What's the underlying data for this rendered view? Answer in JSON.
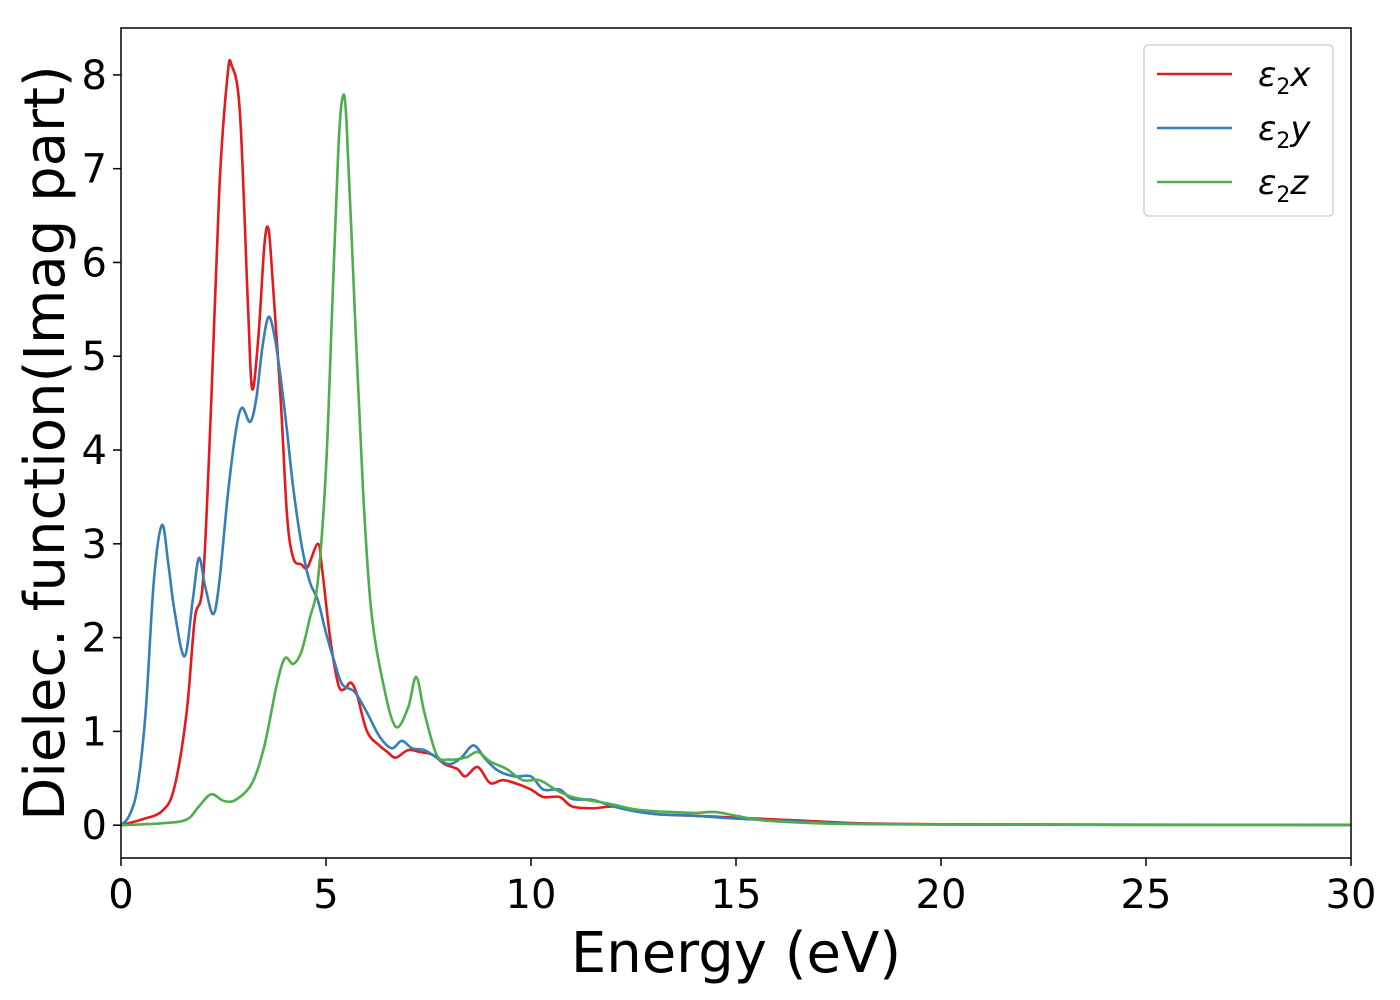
{
  "chart_data": {
    "type": "line",
    "xlabel": "Energy (eV)",
    "ylabel": "Dielec. function(Imag part)",
    "xlim": [
      0,
      30
    ],
    "ylim": [
      -0.35,
      8.5
    ],
    "xticks": [
      0,
      5,
      10,
      15,
      20,
      25,
      30
    ],
    "yticks": [
      0,
      1,
      2,
      3,
      4,
      5,
      6,
      7,
      8
    ],
    "grid": false,
    "legend_position": "top-right",
    "series": [
      {
        "name": "ε2x",
        "legend": {
          "symbol": "ε",
          "sub": "2",
          "axis": "x"
        },
        "color": "#e41a1c",
        "points": [
          [
            0,
            0
          ],
          [
            0.5,
            0.06
          ],
          [
            1.0,
            0.15
          ],
          [
            1.3,
            0.4
          ],
          [
            1.6,
            1.2
          ],
          [
            1.8,
            2.2
          ],
          [
            2.0,
            2.6
          ],
          [
            2.2,
            4.5
          ],
          [
            2.4,
            6.8
          ],
          [
            2.6,
            8.0
          ],
          [
            2.7,
            8.1
          ],
          [
            2.9,
            7.6
          ],
          [
            3.1,
            5.5
          ],
          [
            3.2,
            4.65
          ],
          [
            3.35,
            5.2
          ],
          [
            3.5,
            6.2
          ],
          [
            3.6,
            6.35
          ],
          [
            3.7,
            5.8
          ],
          [
            3.9,
            4.5
          ],
          [
            4.05,
            3.3
          ],
          [
            4.2,
            2.85
          ],
          [
            4.4,
            2.78
          ],
          [
            4.55,
            2.75
          ],
          [
            4.8,
            3.0
          ],
          [
            4.9,
            2.75
          ],
          [
            5.1,
            2.0
          ],
          [
            5.3,
            1.5
          ],
          [
            5.45,
            1.45
          ],
          [
            5.6,
            1.52
          ],
          [
            5.75,
            1.4
          ],
          [
            6.0,
            1.0
          ],
          [
            6.3,
            0.85
          ],
          [
            6.5,
            0.78
          ],
          [
            6.7,
            0.72
          ],
          [
            7.0,
            0.8
          ],
          [
            7.3,
            0.78
          ],
          [
            7.6,
            0.75
          ],
          [
            7.9,
            0.65
          ],
          [
            8.2,
            0.6
          ],
          [
            8.4,
            0.52
          ],
          [
            8.7,
            0.62
          ],
          [
            9.0,
            0.45
          ],
          [
            9.3,
            0.48
          ],
          [
            9.6,
            0.45
          ],
          [
            10.0,
            0.38
          ],
          [
            10.3,
            0.3
          ],
          [
            10.7,
            0.3
          ],
          [
            11.0,
            0.2
          ],
          [
            11.5,
            0.18
          ],
          [
            12.0,
            0.2
          ],
          [
            12.5,
            0.17
          ],
          [
            13.0,
            0.12
          ],
          [
            14.0,
            0.1
          ],
          [
            15.0,
            0.08
          ],
          [
            16.0,
            0.06
          ],
          [
            17.0,
            0.04
          ],
          [
            18.0,
            0.02
          ],
          [
            20.0,
            0.01
          ],
          [
            25.0,
            0.005
          ],
          [
            30.0,
            0.004
          ]
        ]
      },
      {
        "name": "ε2y",
        "legend": {
          "symbol": "ε",
          "sub": "2",
          "axis": "y"
        },
        "color": "#377eb8",
        "points": [
          [
            0,
            0
          ],
          [
            0.2,
            0.1
          ],
          [
            0.4,
            0.4
          ],
          [
            0.6,
            1.2
          ],
          [
            0.8,
            2.6
          ],
          [
            1.0,
            3.2
          ],
          [
            1.15,
            2.8
          ],
          [
            1.3,
            2.3
          ],
          [
            1.55,
            1.8
          ],
          [
            1.75,
            2.4
          ],
          [
            1.9,
            2.85
          ],
          [
            2.05,
            2.55
          ],
          [
            2.25,
            2.25
          ],
          [
            2.4,
            2.6
          ],
          [
            2.6,
            3.5
          ],
          [
            2.8,
            4.2
          ],
          [
            2.95,
            4.45
          ],
          [
            3.15,
            4.3
          ],
          [
            3.3,
            4.55
          ],
          [
            3.45,
            5.1
          ],
          [
            3.6,
            5.42
          ],
          [
            3.75,
            5.2
          ],
          [
            3.9,
            4.75
          ],
          [
            4.05,
            4.2
          ],
          [
            4.2,
            3.6
          ],
          [
            4.4,
            3.0
          ],
          [
            4.6,
            2.6
          ],
          [
            4.8,
            2.4
          ],
          [
            5.0,
            2.05
          ],
          [
            5.2,
            1.75
          ],
          [
            5.4,
            1.5
          ],
          [
            5.7,
            1.42
          ],
          [
            6.0,
            1.2
          ],
          [
            6.3,
            0.95
          ],
          [
            6.6,
            0.82
          ],
          [
            6.85,
            0.9
          ],
          [
            7.1,
            0.82
          ],
          [
            7.4,
            0.8
          ],
          [
            7.7,
            0.72
          ],
          [
            8.0,
            0.65
          ],
          [
            8.3,
            0.72
          ],
          [
            8.6,
            0.85
          ],
          [
            8.9,
            0.7
          ],
          [
            9.2,
            0.58
          ],
          [
            9.6,
            0.52
          ],
          [
            10.0,
            0.52
          ],
          [
            10.3,
            0.38
          ],
          [
            10.7,
            0.38
          ],
          [
            11.0,
            0.28
          ],
          [
            11.5,
            0.27
          ],
          [
            12.0,
            0.2
          ],
          [
            12.5,
            0.15
          ],
          [
            13.0,
            0.12
          ],
          [
            14.0,
            0.1
          ],
          [
            15.0,
            0.07
          ],
          [
            16.0,
            0.05
          ],
          [
            17.0,
            0.03
          ],
          [
            18.0,
            0.015
          ],
          [
            20.0,
            0.008
          ],
          [
            25.0,
            0.004
          ],
          [
            30.0,
            0.003
          ]
        ]
      },
      {
        "name": "ε2z",
        "legend": {
          "symbol": "ε",
          "sub": "2",
          "axis": "z"
        },
        "color": "#4daf4a",
        "points": [
          [
            0,
            0
          ],
          [
            1.0,
            0.02
          ],
          [
            1.6,
            0.06
          ],
          [
            1.9,
            0.2
          ],
          [
            2.2,
            0.33
          ],
          [
            2.5,
            0.26
          ],
          [
            2.8,
            0.27
          ],
          [
            3.2,
            0.45
          ],
          [
            3.5,
            0.85
          ],
          [
            3.8,
            1.5
          ],
          [
            4.0,
            1.78
          ],
          [
            4.2,
            1.72
          ],
          [
            4.4,
            1.85
          ],
          [
            4.6,
            2.2
          ],
          [
            4.8,
            2.6
          ],
          [
            5.0,
            3.8
          ],
          [
            5.15,
            5.5
          ],
          [
            5.3,
            7.2
          ],
          [
            5.4,
            7.75
          ],
          [
            5.5,
            7.5
          ],
          [
            5.7,
            5.5
          ],
          [
            5.9,
            3.6
          ],
          [
            6.1,
            2.3
          ],
          [
            6.4,
            1.5
          ],
          [
            6.7,
            1.05
          ],
          [
            7.0,
            1.25
          ],
          [
            7.2,
            1.58
          ],
          [
            7.4,
            1.2
          ],
          [
            7.7,
            0.75
          ],
          [
            8.0,
            0.7
          ],
          [
            8.4,
            0.72
          ],
          [
            8.7,
            0.78
          ],
          [
            9.0,
            0.68
          ],
          [
            9.4,
            0.6
          ],
          [
            9.8,
            0.48
          ],
          [
            10.2,
            0.48
          ],
          [
            10.6,
            0.38
          ],
          [
            11.0,
            0.3
          ],
          [
            11.5,
            0.26
          ],
          [
            12.0,
            0.22
          ],
          [
            12.5,
            0.17
          ],
          [
            13.0,
            0.15
          ],
          [
            13.5,
            0.14
          ],
          [
            14.0,
            0.13
          ],
          [
            14.5,
            0.14
          ],
          [
            15.0,
            0.1
          ],
          [
            15.5,
            0.06
          ],
          [
            16.0,
            0.04
          ],
          [
            17.0,
            0.02
          ],
          [
            18.0,
            0.012
          ],
          [
            20.0,
            0.006
          ],
          [
            25.0,
            0.003
          ],
          [
            30.0,
            0.002
          ]
        ]
      }
    ]
  }
}
